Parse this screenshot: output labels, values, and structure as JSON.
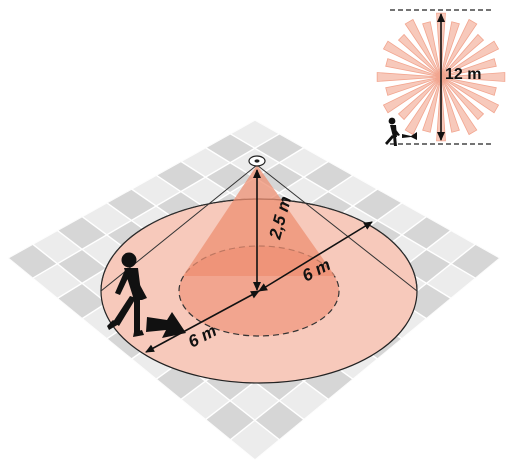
{
  "labels": {
    "mounting_height": "2,5 m",
    "radius_right": "6 m",
    "radius_left": "6 m",
    "diameter": "12 m"
  },
  "colors": {
    "floor_light": "#ececec",
    "floor_dark": "#d6d6d6",
    "grid_line": "#ffffff",
    "outer_zone": "#f7c9bb",
    "inner_zone": "#f2a58f",
    "cone": "#ee8f72",
    "dash": "#333333",
    "line": "#111111"
  },
  "icons": {
    "sensor": "motion-sensor-icon",
    "person": "walking-person-icon",
    "direction": "direction-arrow-icon",
    "mini_person": "small-walking-person-icon"
  }
}
